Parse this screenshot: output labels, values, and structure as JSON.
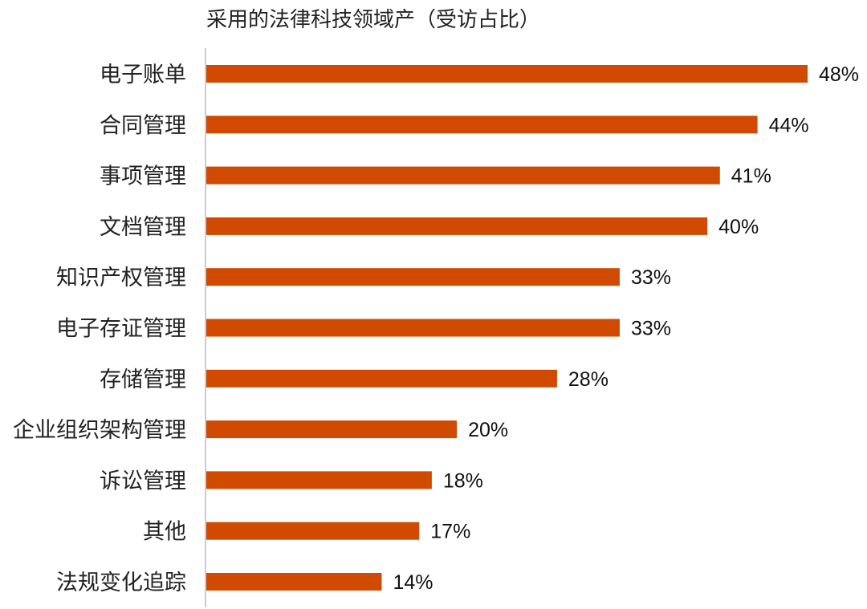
{
  "colors": {
    "bar": "#d04a02",
    "axis": "#cccccc",
    "text": "#222222"
  },
  "chart_data": {
    "type": "bar",
    "orientation": "horizontal",
    "title": "采用的法律科技领域产（受访占比）",
    "categories": [
      "电子账单",
      "合同管理",
      "事项管理",
      "文档管理",
      "知识产权管理",
      "电子存证管理",
      "存储管理",
      "企业组织架构管理",
      "诉讼管理",
      "其他",
      "法规变化追踪"
    ],
    "values": [
      48,
      44,
      41,
      40,
      33,
      33,
      28,
      20,
      18,
      17,
      14
    ],
    "value_labels": [
      "48%",
      "44%",
      "41%",
      "40%",
      "33%",
      "33%",
      "28%",
      "20%",
      "18%",
      "17%",
      "14%"
    ],
    "unit": "%",
    "xlim": [
      0,
      48
    ],
    "grid": false,
    "legend": "none"
  }
}
